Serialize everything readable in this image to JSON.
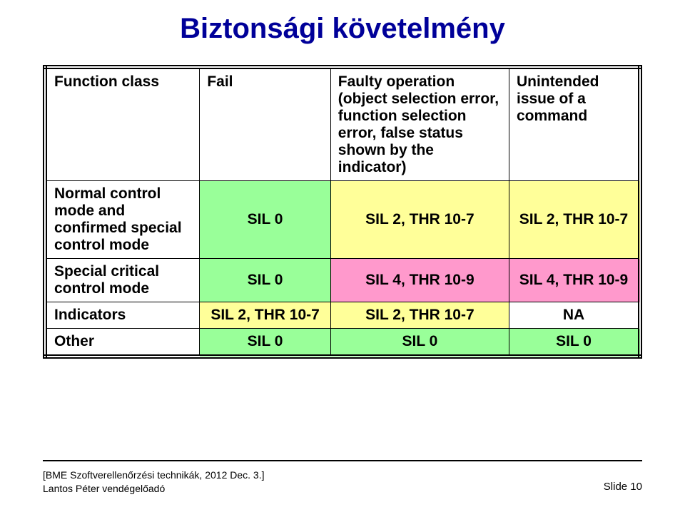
{
  "title": "Biztonsági követelmény",
  "colors": {
    "sil0": "#99ff99",
    "sil2": "#ffff99",
    "sil4": "#ff99cc",
    "na": "#ffffff"
  },
  "headers": {
    "function_class": "Function class",
    "fail": "Fail",
    "faulty_op": "Faulty operation (object selection error, function selection error, false status shown by the indicator)",
    "unintended": "Unintended issue of a command"
  },
  "rows": [
    {
      "label": "Normal control mode and confirmed special control mode",
      "cells": [
        {
          "text": "SIL 0",
          "colorKey": "sil0"
        },
        {
          "text": "SIL 2, THR 10-7",
          "colorKey": "sil2"
        },
        {
          "text": "SIL 2, THR 10-7",
          "colorKey": "sil2"
        }
      ]
    },
    {
      "label": "Special critical control mode",
      "cells": [
        {
          "text": "SIL 0",
          "colorKey": "sil0"
        },
        {
          "text": "SIL 4, THR 10-9",
          "colorKey": "sil4"
        },
        {
          "text": "SIL 4, THR 10-9",
          "colorKey": "sil4"
        }
      ]
    },
    {
      "label": "Indicators",
      "cells": [
        {
          "text": "SIL 2, THR 10-7",
          "colorKey": "sil2"
        },
        {
          "text": "SIL 2, THR 10-7",
          "colorKey": "sil2"
        },
        {
          "text": "NA",
          "colorKey": "na"
        }
      ]
    },
    {
      "label": "Other",
      "cells": [
        {
          "text": "SIL 0",
          "colorKey": "sil0"
        },
        {
          "text": "SIL 0",
          "colorKey": "sil0"
        },
        {
          "text": "SIL 0",
          "colorKey": "sil0"
        }
      ]
    }
  ],
  "footer": {
    "line1": "[BME Szoftverellenőrzési technikák, 2012 Dec. 3.]",
    "line2": "Lantos Péter vendégelőadó",
    "slide": "Slide 10"
  }
}
